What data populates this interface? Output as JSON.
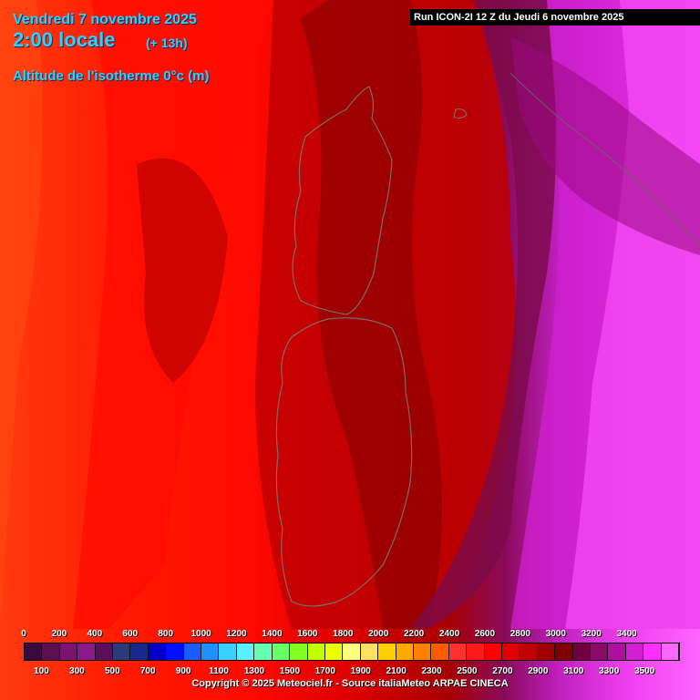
{
  "header": {
    "date": "Vendredi 7 novembre 2025",
    "time": "2:00 locale",
    "lead": "(+ 13h)",
    "parameter": "Altitude de l'isotherme 0°c (m)"
  },
  "run_info": "Run ICON-2I 12 Z du Jeudi 6 novembre 2025",
  "legend": {
    "top_ticks": [
      "0",
      "200",
      "400",
      "600",
      "800",
      "1000",
      "1200",
      "1400",
      "1600",
      "1800",
      "2000",
      "2200",
      "2400",
      "2600",
      "2800",
      "3000",
      "3200",
      "3400"
    ],
    "bottom_ticks": [
      "100",
      "300",
      "500",
      "700",
      "900",
      "1100",
      "1300",
      "1500",
      "1700",
      "1900",
      "2100",
      "2300",
      "2500",
      "2700",
      "2900",
      "3100",
      "3300",
      "3500"
    ],
    "colors": [
      "#3a0a3a",
      "#5a1050",
      "#7a1470",
      "#8a1a8a",
      "#5a0f5a",
      "#2a3a7a",
      "#16288a",
      "#0000c8",
      "#0010ff",
      "#1a5cff",
      "#1e90ff",
      "#3ad0ff",
      "#5cf0ff",
      "#66ffb0",
      "#66ff66",
      "#80ff20",
      "#c0ff00",
      "#ecff00",
      "#ffff80",
      "#ffe066",
      "#ffd000",
      "#ffa800",
      "#ff8000",
      "#ff5a00",
      "#ff3030",
      "#ff1a1a",
      "#ff0000",
      "#e00000",
      "#c00000",
      "#a00000",
      "#800000",
      "#700040",
      "#8a0a6a",
      "#b010a0",
      "#d020d0",
      "#ff30ff",
      "#ff66ff"
    ]
  },
  "copyright": "Copyright © 2025 Meteociel.fr - Source italiaMeteo ARPAE CINECA",
  "map": {
    "colors": {
      "far_west": "#ff3a10",
      "west": "#ff1a00",
      "mid": "#e80000",
      "core": "#c00000",
      "deep": "#8e0000",
      "east_transition": "#8a0a6a",
      "east": "#d020d0",
      "far_east": "#ff44ff"
    },
    "regions": [
      "corsica-outline",
      "sardinia-outline",
      "italy-coast"
    ]
  }
}
